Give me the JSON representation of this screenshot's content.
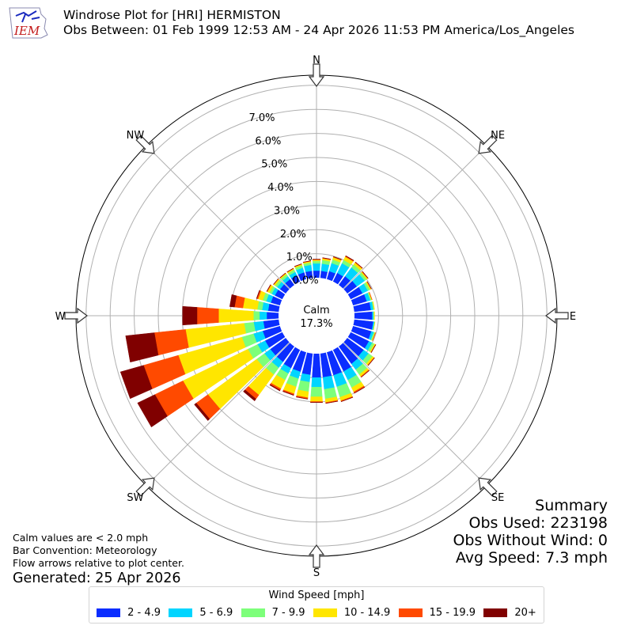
{
  "header": {
    "logo_text": "IEM",
    "title": "Windrose Plot for [HRI] HERMISTON",
    "subtitle": "Obs Between: 01 Feb 1999 12:53 AM - 24 Apr 2026 11:53 PM America/Los_Angeles"
  },
  "notes": {
    "calm_note": "Calm values are < 2.0 mph",
    "bar_convention": "Bar Convention: Meteorology",
    "flow_arrows": "Flow arrows relative to plot center.",
    "generated": "Generated: 25 Apr 2026"
  },
  "summary": {
    "title": "Summary",
    "obs_used": "Obs Used: 223198",
    "obs_without_wind": "Obs Without Wind: 0",
    "avg_speed": "Avg Speed: 7.3 mph"
  },
  "legend": {
    "title": "Wind Speed [mph]",
    "items": [
      {
        "label": "2 - 4.9",
        "color": "#0a2dff"
      },
      {
        "label": "5 - 6.9",
        "color": "#00d5ff"
      },
      {
        "label": "7 - 9.9",
        "color": "#7dff7a"
      },
      {
        "label": "10 - 14.9",
        "color": "#ffe600"
      },
      {
        "label": "15 - 19.9",
        "color": "#ff4a00"
      },
      {
        "label": "20+",
        "color": "#800000"
      }
    ]
  },
  "chart_data": {
    "type": "windrose",
    "direction_labels": [
      "N",
      "NE",
      "E",
      "SE",
      "S",
      "SW",
      "W",
      "NW"
    ],
    "radial_tick_labels": [
      "0.0%",
      "1.0%",
      "2.0%",
      "3.0%",
      "4.0%",
      "5.0%",
      "6.0%",
      "7.0%"
    ],
    "radial_max": 7.0,
    "calm_label": "Calm",
    "calm_value": "17.3%",
    "bins": [
      "2 - 4.9",
      "5 - 6.9",
      "7 - 9.9",
      "10 - 14.9",
      "15 - 19.9",
      "20+"
    ],
    "bin_colors": [
      "#0a2dff",
      "#00d5ff",
      "#7dff7a",
      "#ffe600",
      "#ff4a00",
      "#800000"
    ],
    "direction_degrees": [
      0,
      10,
      20,
      30,
      40,
      50,
      60,
      70,
      80,
      90,
      100,
      110,
      120,
      130,
      140,
      150,
      160,
      170,
      180,
      190,
      200,
      210,
      220,
      230,
      240,
      250,
      260,
      270,
      280,
      290,
      300,
      310,
      320,
      330,
      340,
      350
    ],
    "cumulative_percent": [
      [
        0.3,
        0.6,
        0.7,
        0.75,
        0.77,
        0.78
      ],
      [
        0.3,
        0.6,
        0.75,
        0.82,
        0.84,
        0.85
      ],
      [
        0.35,
        0.7,
        0.85,
        0.95,
        0.97,
        0.98
      ],
      [
        0.4,
        0.85,
        1.0,
        1.15,
        1.18,
        1.2
      ],
      [
        0.45,
        0.9,
        1.05,
        1.15,
        1.17,
        1.18
      ],
      [
        0.5,
        0.9,
        1.0,
        1.05,
        1.07,
        1.08
      ],
      [
        0.55,
        0.8,
        0.9,
        0.95,
        0.96,
        0.97
      ],
      [
        0.6,
        0.75,
        0.8,
        0.82,
        0.83,
        0.83
      ],
      [
        0.7,
        0.8,
        0.83,
        0.85,
        0.85,
        0.85
      ],
      [
        0.75,
        0.8,
        0.82,
        0.84,
        0.84,
        0.84
      ],
      [
        0.8,
        0.85,
        0.86,
        0.87,
        0.87,
        0.87
      ],
      [
        0.8,
        0.9,
        0.95,
        0.97,
        0.98,
        0.98
      ],
      [
        0.85,
        1.0,
        1.1,
        1.15,
        1.16,
        1.17
      ],
      [
        0.85,
        1.1,
        1.3,
        1.38,
        1.4,
        1.41
      ],
      [
        0.9,
        1.2,
        1.45,
        1.55,
        1.58,
        1.59
      ],
      [
        1.0,
        1.4,
        1.75,
        1.95,
        2.0,
        2.01
      ],
      [
        1.0,
        1.5,
        1.95,
        2.1,
        2.13,
        2.14
      ],
      [
        1.0,
        1.5,
        1.9,
        2.05,
        2.08,
        2.09
      ],
      [
        1.0,
        1.4,
        1.8,
        2.0,
        2.03,
        2.04
      ],
      [
        0.9,
        1.2,
        1.6,
        1.85,
        1.9,
        1.91
      ],
      [
        0.85,
        1.15,
        1.5,
        1.8,
        1.85,
        1.87
      ],
      [
        0.85,
        1.1,
        1.4,
        1.8,
        1.87,
        1.9
      ],
      [
        0.8,
        1.1,
        1.45,
        2.5,
        2.7,
        2.8
      ],
      [
        0.8,
        1.1,
        1.5,
        4.0,
        4.6,
        4.7
      ],
      [
        0.8,
        1.15,
        1.6,
        4.6,
        5.9,
        6.7
      ],
      [
        0.75,
        1.15,
        1.65,
        4.4,
        5.9,
        6.9
      ],
      [
        0.65,
        1.05,
        1.45,
        3.9,
        5.2,
        6.4
      ],
      [
        0.5,
        0.8,
        1.05,
        2.5,
        3.4,
        4.0
      ],
      [
        0.45,
        0.7,
        0.9,
        1.5,
        1.85,
        2.05
      ],
      [
        0.4,
        0.6,
        0.75,
        0.95,
        1.0,
        1.02
      ],
      [
        0.35,
        0.5,
        0.6,
        0.7,
        0.72,
        0.73
      ],
      [
        0.3,
        0.45,
        0.55,
        0.62,
        0.63,
        0.64
      ],
      [
        0.3,
        0.45,
        0.55,
        0.6,
        0.61,
        0.62
      ],
      [
        0.3,
        0.45,
        0.55,
        0.6,
        0.61,
        0.62
      ],
      [
        0.3,
        0.5,
        0.6,
        0.65,
        0.66,
        0.67
      ],
      [
        0.3,
        0.55,
        0.65,
        0.7,
        0.71,
        0.72
      ]
    ]
  }
}
